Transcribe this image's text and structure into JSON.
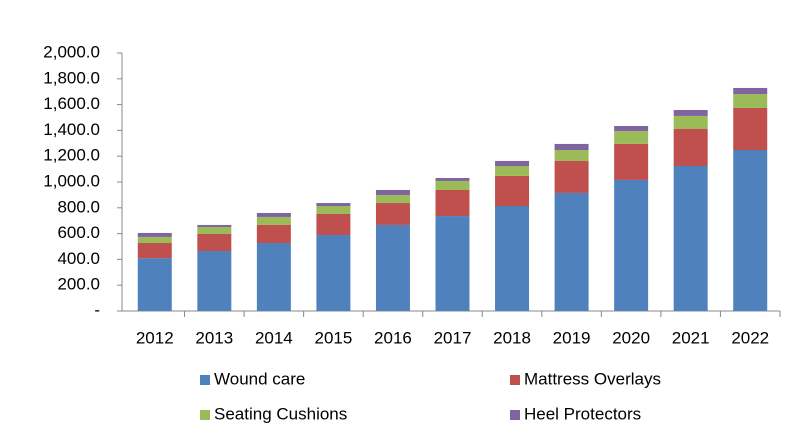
{
  "chart_data": {
    "type": "stacked_bar",
    "categories": [
      "2012",
      "2013",
      "2014",
      "2015",
      "2016",
      "2017",
      "2018",
      "2019",
      "2020",
      "2021",
      "2022"
    ],
    "series": [
      {
        "name": "Wound care",
        "color": "#4f81bd",
        "values": [
          410,
          465,
          527,
          589,
          667,
          736,
          814,
          915,
          1016,
          1124,
          1248
        ]
      },
      {
        "name": "Mattress Overlays",
        "color": "#c0504d",
        "values": [
          117,
          132,
          140,
          163,
          170,
          202,
          233,
          248,
          279,
          287,
          326
        ]
      },
      {
        "name": "Seating Cushions",
        "color": "#9bbb59",
        "values": [
          47,
          54,
          62,
          62,
          62,
          70,
          77,
          85,
          100,
          101,
          108
        ]
      },
      {
        "name": "Heel Protectors",
        "color": "#8064a2",
        "values": [
          31,
          16,
          31,
          23,
          39,
          23,
          39,
          47,
          39,
          46,
          47
        ]
      }
    ],
    "ylim": [
      0,
      2000
    ],
    "yticks": [
      {
        "value": 0,
        "label": "-"
      },
      {
        "value": 200,
        "label": "200.0"
      },
      {
        "value": 400,
        "label": "400.0"
      },
      {
        "value": 600,
        "label": "600.0"
      },
      {
        "value": 800,
        "label": "800.0"
      },
      {
        "value": 1000,
        "label": "1,000.0"
      },
      {
        "value": 1200,
        "label": "1,200.0"
      },
      {
        "value": 1400,
        "label": "1,400.0"
      },
      {
        "value": 1600,
        "label": "1,600.0"
      },
      {
        "value": 1800,
        "label": "1,800.0"
      },
      {
        "value": 2000,
        "label": "2,000.0"
      }
    ],
    "grid": false
  }
}
